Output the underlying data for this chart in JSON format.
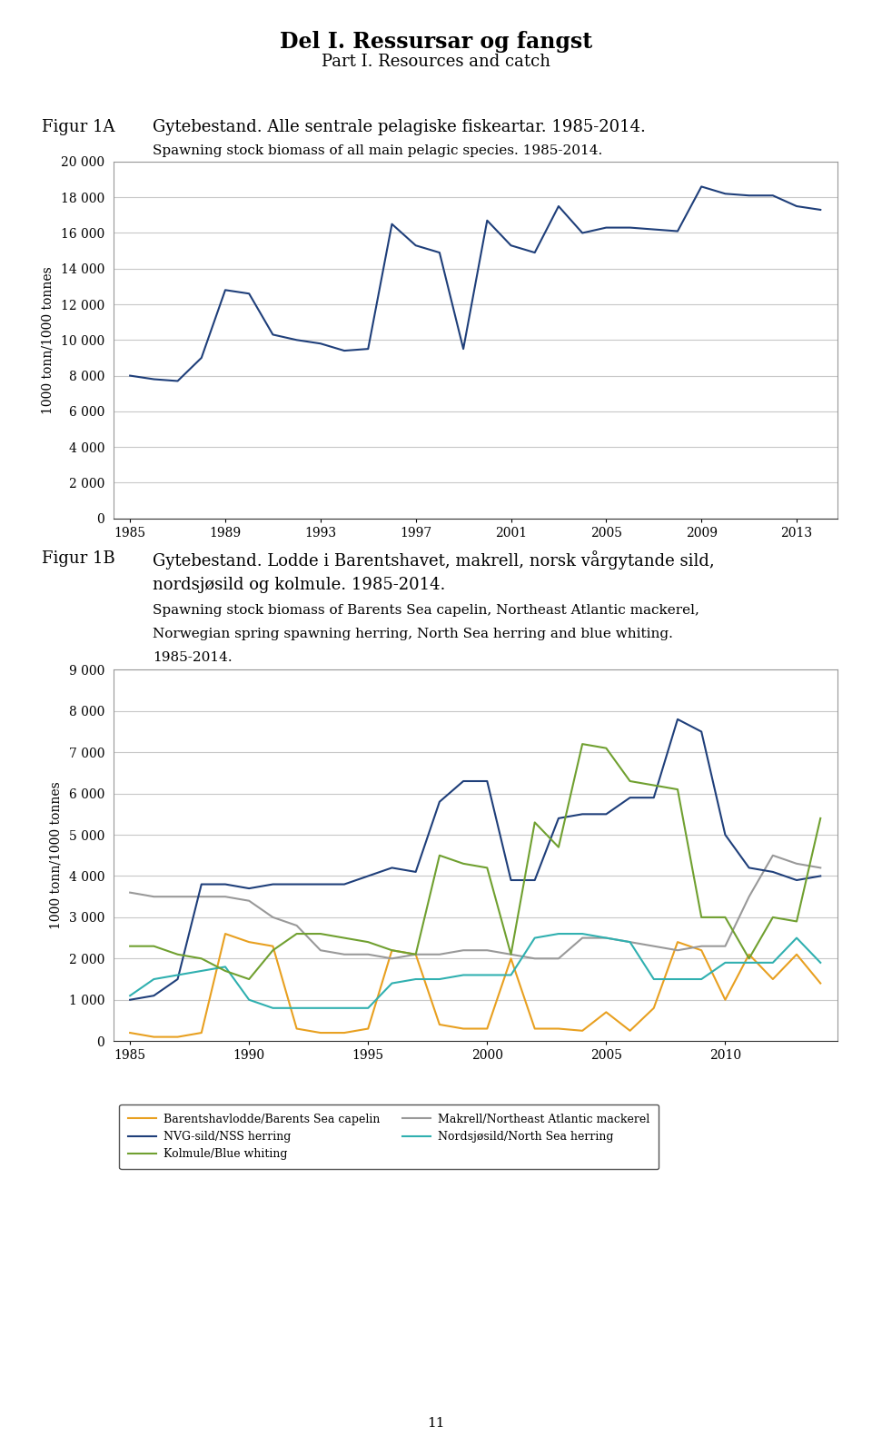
{
  "page_title1": "Del I. Ressursar og fangst",
  "page_title2": "Part I. Resources and catch",
  "page_number": "11",
  "fig1A_label": "Figur 1A",
  "fig1A_title_no": "Gytebestand. Alle sentrale pelagiske fiskeartar. 1985-2014.",
  "fig1A_title_en": "Spawning stock biomass of all main pelagic species. 1985-2014.",
  "fig1A_ylabel": "1000 tonn/1000 tonnes",
  "fig1A_ylim": [
    0,
    20000
  ],
  "fig1A_yticks": [
    0,
    2000,
    4000,
    6000,
    8000,
    10000,
    12000,
    14000,
    16000,
    18000,
    20000
  ],
  "fig1A_ytick_labels": [
    "0",
    "2 000",
    "4 000",
    "6 000",
    "8 000",
    "10 000",
    "12 000",
    "14 000",
    "16 000",
    "18 000",
    "20 000"
  ],
  "fig1A_years": [
    1985,
    1986,
    1987,
    1988,
    1989,
    1990,
    1991,
    1992,
    1993,
    1994,
    1995,
    1996,
    1997,
    1998,
    1999,
    2000,
    2001,
    2002,
    2003,
    2004,
    2005,
    2006,
    2007,
    2008,
    2009,
    2010,
    2011,
    2012,
    2013,
    2014
  ],
  "fig1A_values": [
    8000,
    7800,
    7700,
    9000,
    12800,
    12600,
    10300,
    10000,
    9800,
    9400,
    9500,
    16500,
    15300,
    14900,
    9500,
    16700,
    15300,
    14900,
    17500,
    16000,
    16300,
    16300,
    16200,
    16100,
    18600,
    18200,
    18100,
    18100,
    17500,
    17300
  ],
  "fig1A_line_color": "#1F3F7A",
  "fig1A_xticks": [
    1985,
    1989,
    1993,
    1997,
    2001,
    2005,
    2009,
    2013
  ],
  "fig1B_label": "Figur 1B",
  "fig1B_title_no1": "Gytebestand. Lodde i Barentshavet, makrell, norsk vårgytande sild,",
  "fig1B_title_no2": "nordsjøsild og kolmule. 1985-2014.",
  "fig1B_title_en1": "Spawning stock biomass of Barents Sea capelin, Northeast Atlantic mackerel,",
  "fig1B_title_en2": "Norwegian spring spawning herring, North Sea herring and blue whiting.",
  "fig1B_title_en3": "1985-2014.",
  "fig1B_ylabel": "1000 tonn/1000 tonnes",
  "fig1B_ylim": [
    0,
    9000
  ],
  "fig1B_yticks": [
    0,
    1000,
    2000,
    3000,
    4000,
    5000,
    6000,
    7000,
    8000,
    9000
  ],
  "fig1B_ytick_labels": [
    "0",
    "1 000",
    "2 000",
    "3 000",
    "4 000",
    "5 000",
    "6 000",
    "7 000",
    "8 000",
    "9 000"
  ],
  "fig1B_years": [
    1985,
    1986,
    1987,
    1988,
    1989,
    1990,
    1991,
    1992,
    1993,
    1994,
    1995,
    1996,
    1997,
    1998,
    1999,
    2000,
    2001,
    2002,
    2003,
    2004,
    2005,
    2006,
    2007,
    2008,
    2009,
    2010,
    2011,
    2012,
    2013,
    2014
  ],
  "fig1B_xticks": [
    1985,
    1990,
    1995,
    2000,
    2005,
    2010
  ],
  "capelin": [
    200,
    100,
    100,
    200,
    2600,
    2400,
    2300,
    300,
    200,
    200,
    300,
    2200,
    2100,
    400,
    300,
    300,
    2000,
    300,
    300,
    250,
    700,
    250,
    800,
    2400,
    2200,
    1000,
    2100,
    1500,
    2100,
    1400
  ],
  "mackerel": [
    3600,
    3500,
    3500,
    3500,
    3500,
    3400,
    3000,
    2800,
    2200,
    2100,
    2100,
    2000,
    2100,
    2100,
    2200,
    2200,
    2100,
    2000,
    2000,
    2500,
    2500,
    2400,
    2300,
    2200,
    2300,
    2300,
    3500,
    4500,
    4300,
    4200
  ],
  "nss_herring": [
    1000,
    1100,
    1500,
    3800,
    3800,
    3700,
    3800,
    3800,
    3800,
    3800,
    4000,
    4200,
    4100,
    5800,
    6300,
    6300,
    3900,
    3900,
    5400,
    5500,
    5500,
    5900,
    5900,
    7800,
    7500,
    5000,
    4200,
    4100,
    3900,
    4000
  ],
  "north_sea_herring": [
    1100,
    1500,
    1600,
    1700,
    1800,
    1000,
    800,
    800,
    800,
    800,
    800,
    1400,
    1500,
    1500,
    1600,
    1600,
    1600,
    2500,
    2600,
    2600,
    2500,
    2400,
    1500,
    1500,
    1500,
    1900,
    1900,
    1900,
    2500,
    1900
  ],
  "blue_whiting": [
    2300,
    2300,
    2100,
    2000,
    1700,
    1500,
    2200,
    2600,
    2600,
    2500,
    2400,
    2200,
    2100,
    4500,
    4300,
    4200,
    2100,
    5300,
    4700,
    7200,
    7100,
    6300,
    6200,
    6100,
    3000,
    3000,
    2000,
    3000,
    2900,
    5400
  ],
  "capelin_color": "#E8A020",
  "mackerel_color": "#999999",
  "nss_herring_color": "#1F3F7A",
  "north_sea_herring_color": "#30B0B0",
  "blue_whiting_color": "#70A030",
  "legend_entries": [
    [
      "Barentshavlodde/Barents Sea capelin",
      "#E8A020"
    ],
    [
      "NVG-sild/NSS herring",
      "#1F3F7A"
    ],
    [
      "Kolmule/Blue whiting",
      "#70A030"
    ],
    [
      "Makrell/Northeast Atlantic mackerel",
      "#999999"
    ],
    [
      "Nordsjøsild/North Sea herring",
      "#30B0B0"
    ]
  ],
  "bg_color": "#FFFFFF",
  "plot_bg_color": "#FFFFFF",
  "grid_color": "#C8C8C8"
}
